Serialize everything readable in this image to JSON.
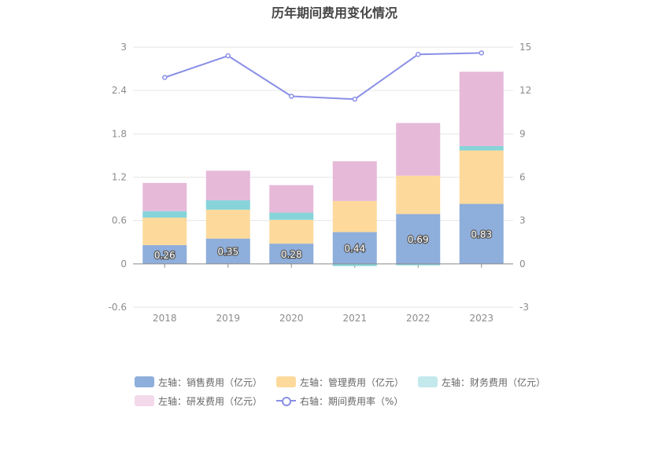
{
  "chart_data": {
    "type": "bar",
    "title": "历年期间费用变化情况",
    "categories": [
      "2018",
      "2019",
      "2020",
      "2021",
      "2022",
      "2023"
    ],
    "y_left": {
      "min": -0.6,
      "max": 3,
      "ticks": [
        "-0.6",
        "0",
        "0.6",
        "1.2",
        "1.8",
        "2.4",
        "3"
      ]
    },
    "y_right": {
      "min": -3,
      "max": 15,
      "ticks": [
        "-3",
        "0",
        "3",
        "6",
        "9",
        "12",
        "15"
      ]
    },
    "stacked": true,
    "series": [
      {
        "name": "左轴：销售费用（亿元）",
        "axis": "left",
        "color": "#8eaedb",
        "values": [
          0.26,
          0.35,
          0.28,
          0.44,
          0.69,
          0.83
        ],
        "labels": [
          "0.26",
          "0.35",
          "0.28",
          "0.44",
          "0.69",
          "0.83"
        ]
      },
      {
        "name": "左轴：管理费用（亿元）",
        "axis": "left",
        "color": "#fdda9c",
        "values": [
          0.38,
          0.4,
          0.33,
          0.43,
          0.53,
          0.74
        ]
      },
      {
        "name": "左轴：财务费用（亿元）",
        "axis": "left",
        "color": "#86d4da",
        "values": [
          0.09,
          0.13,
          0.1,
          -0.03,
          -0.02,
          0.06
        ]
      },
      {
        "name": "左轴：研发费用（亿元）",
        "axis": "left",
        "color": "#e6b9d9",
        "values": [
          0.39,
          0.41,
          0.38,
          0.55,
          0.73,
          1.03
        ]
      },
      {
        "name": "右轴：期间费用率（%）",
        "axis": "right",
        "type": "line",
        "color": "#8a8fe6",
        "values": [
          12.9,
          14.4,
          11.6,
          11.4,
          14.5,
          14.6
        ]
      }
    ],
    "legend_position": "bottom",
    "grid": true
  },
  "legend": {
    "items": [
      {
        "label": "左轴：销售费用（亿元）",
        "color": "#8eaedb",
        "kind": "bar"
      },
      {
        "label": "左轴：管理费用（亿元）",
        "color": "#fdda9c",
        "kind": "bar"
      },
      {
        "label": "左轴：财务费用（亿元）",
        "color": "#c3e9ed",
        "kind": "bar"
      },
      {
        "label": "左轴：研发费用（亿元）",
        "color": "#f3d9ea",
        "kind": "bar"
      },
      {
        "label": "右轴：期间费用率（%）",
        "color": "#8a8fe6",
        "kind": "line"
      }
    ]
  }
}
